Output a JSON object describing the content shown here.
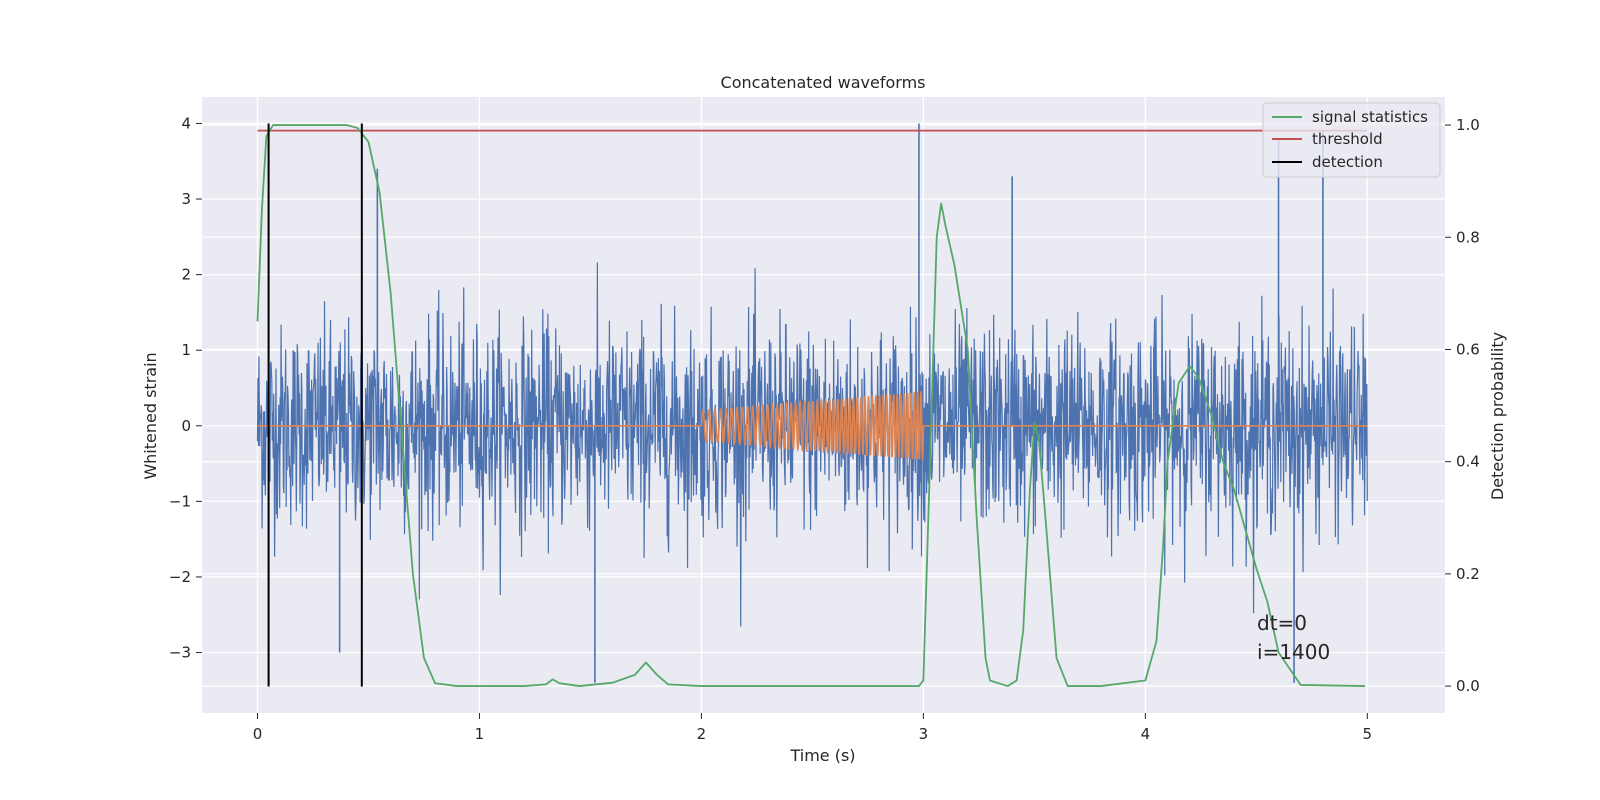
{
  "chart_data": {
    "type": "line",
    "title": "Concatenated waveforms",
    "xlabel": "Time (s)",
    "ylabel": "Whitened strain",
    "y2label": "Detection probability",
    "xlim": [
      -0.25,
      5.35
    ],
    "ylim": [
      -3.8,
      4.35
    ],
    "y2lim": [
      -0.048,
      1.05
    ],
    "xticks": [
      0,
      1,
      2,
      3,
      4,
      5
    ],
    "yticks": [
      -3,
      -2,
      -1,
      0,
      1,
      2,
      3,
      4
    ],
    "y2ticks": [
      0.0,
      0.2,
      0.4,
      0.6,
      0.8,
      1.0
    ],
    "ytick_labels": [
      "−3",
      "−2",
      "−1",
      "0",
      "1",
      "2",
      "3",
      "4"
    ],
    "y2tick_labels": [
      "0.0",
      "0.2",
      "0.4",
      "0.6",
      "0.8",
      "1.0"
    ],
    "grid": true,
    "legend_position": "top-right",
    "colors": {
      "strain": "#4c72b0",
      "injection": "#dd8452",
      "signal": "#55a868",
      "threshold": "#c44e52",
      "detection": "#000000"
    },
    "strain_noise": {
      "x_range": [
        0,
        5
      ],
      "typical_abs": 1.2,
      "peak_max": 4.0,
      "peak_min": -3.4,
      "notable_peaks": [
        {
          "x": 2.98,
          "y": 4.0
        },
        {
          "x": 4.8,
          "y": 3.9
        },
        {
          "x": 4.6,
          "y": 3.8
        },
        {
          "x": 0.54,
          "y": 3.4
        },
        {
          "x": 3.4,
          "y": 3.3
        },
        {
          "x": 1.52,
          "y": -3.4
        },
        {
          "x": 4.67,
          "y": -3.4
        },
        {
          "x": 0.37,
          "y": -3.0
        }
      ]
    },
    "injection": {
      "x_start": 2.0,
      "x_end": 3.0,
      "amp_start": 0.2,
      "amp_end": 0.45,
      "cycles": 52
    },
    "series": [
      {
        "name": "signal statistics",
        "axis": "right",
        "x": [
          0.0,
          0.02,
          0.04,
          0.07,
          0.1,
          0.2,
          0.3,
          0.4,
          0.45,
          0.5,
          0.55,
          0.6,
          0.65,
          0.7,
          0.75,
          0.8,
          0.9,
          1.0,
          1.2,
          1.3,
          1.33,
          1.36,
          1.45,
          1.6,
          1.7,
          1.75,
          1.8,
          1.85,
          2.0,
          2.5,
          2.98,
          3.0,
          3.03,
          3.06,
          3.08,
          3.1,
          3.14,
          3.2,
          3.24,
          3.28,
          3.3,
          3.38,
          3.42,
          3.45,
          3.48,
          3.5,
          3.52,
          3.55,
          3.6,
          3.65,
          3.8,
          4.0,
          4.05,
          4.08,
          4.1,
          4.15,
          4.2,
          4.24,
          4.3,
          4.35,
          4.4,
          4.5,
          4.55,
          4.6,
          4.7,
          4.99
        ],
        "y": [
          0.65,
          0.85,
          0.98,
          1.0,
          1.0,
          1.0,
          1.0,
          1.0,
          0.995,
          0.97,
          0.88,
          0.7,
          0.45,
          0.2,
          0.05,
          0.005,
          0.0,
          0.0,
          0.0,
          0.003,
          0.012,
          0.005,
          0.0,
          0.006,
          0.02,
          0.042,
          0.02,
          0.003,
          0.0,
          0.0,
          0.0,
          0.01,
          0.4,
          0.8,
          0.86,
          0.82,
          0.75,
          0.6,
          0.3,
          0.05,
          0.01,
          0.0,
          0.01,
          0.1,
          0.35,
          0.47,
          0.44,
          0.3,
          0.05,
          0.0,
          0.0,
          0.01,
          0.08,
          0.25,
          0.4,
          0.54,
          0.57,
          0.55,
          0.48,
          0.4,
          0.35,
          0.21,
          0.15,
          0.06,
          0.002,
          0.0
        ]
      },
      {
        "name": "threshold",
        "axis": "right",
        "x": [
          0.0,
          5.0
        ],
        "y": [
          0.99,
          0.99
        ]
      },
      {
        "name": "detection",
        "axis": "left",
        "segments": [
          {
            "x": 0.05,
            "y0": -3.45,
            "y1": 4.0
          },
          {
            "x": 0.47,
            "y0": -3.45,
            "y1": 4.0
          }
        ]
      }
    ],
    "annotations": [
      "dt=0",
      "i=1400"
    ]
  }
}
